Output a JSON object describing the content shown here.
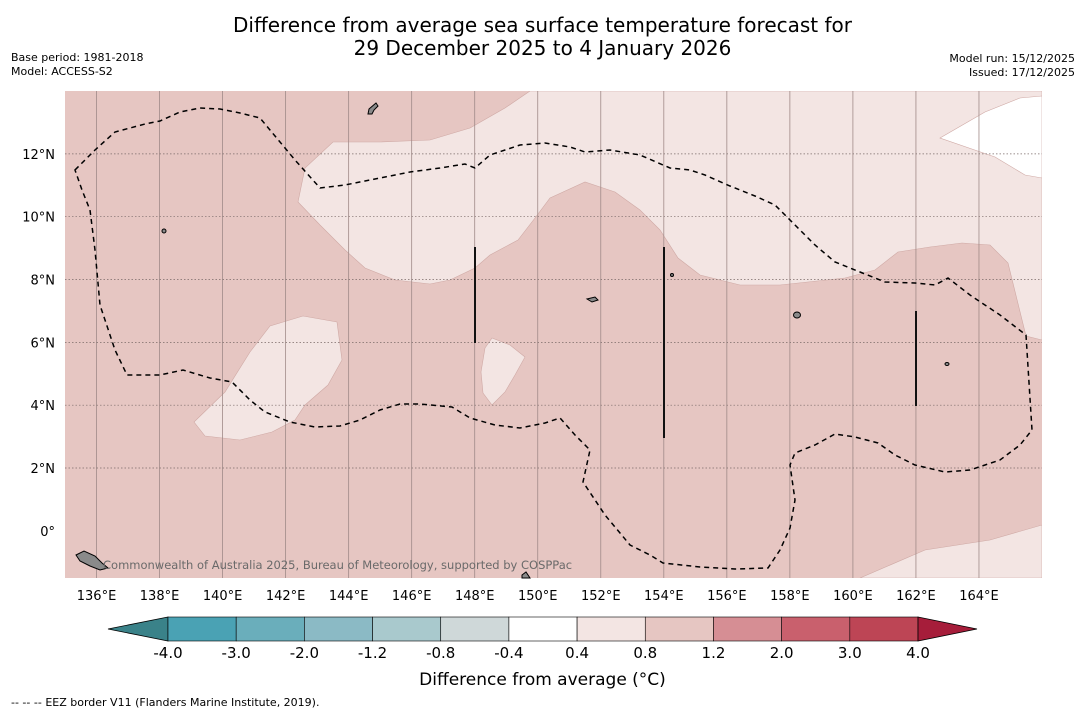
{
  "title": {
    "line1": "Difference from average sea surface temperature forecast for",
    "line2": "29 December 2025 to 4 January 2026"
  },
  "meta_left": {
    "base_period": "Base period: 1981-2018",
    "model": "Model: ACCESS-S2"
  },
  "meta_right": {
    "model_run": "Model run: 15/12/2025",
    "issued": "Issued: 17/12/2025"
  },
  "map": {
    "lon_labels": [
      "136°E",
      "138°E",
      "140°E",
      "142°E",
      "144°E",
      "146°E",
      "148°E",
      "150°E",
      "152°E",
      "154°E",
      "156°E",
      "158°E",
      "160°E",
      "162°E",
      "164°E"
    ],
    "lat_labels": [
      "12°N",
      "10°N",
      "8°N",
      "6°N",
      "4°N",
      "2°N",
      "0°"
    ],
    "lon_range": [
      135,
      166
    ],
    "lat_range": [
      -1.5,
      14
    ],
    "legend_note": "EEZ border V11 (Flanders Marine Institute, 2019).",
    "copyright": "Commonwealth of Australia 2025, Bureau of Meteorology, supported by COSPPac"
  },
  "colorbar": {
    "title": "Difference from average (°C)",
    "labels": [
      "-4.0",
      "-3.0",
      "-2.0",
      "-1.2",
      "-0.8",
      "-0.4",
      "0.4",
      "0.8",
      "1.2",
      "2.0",
      "3.0",
      "4.0"
    ],
    "colors": [
      "#4aa2b4",
      "#6aaebb",
      "#8bbac5",
      "#a9c9cd",
      "#cfd8d9",
      "#ffffff",
      "#f3e5e3",
      "#e6c6c2",
      "#d68e94",
      "#c9606d",
      "#bd4555"
    ],
    "under_color": "#3a8289",
    "over_color": "#a61d3a",
    "dominant_fill": "0.8 to 1.2",
    "light_fill": "0.4 to 0.8"
  },
  "footnote_prefix": "--  --  --"
}
